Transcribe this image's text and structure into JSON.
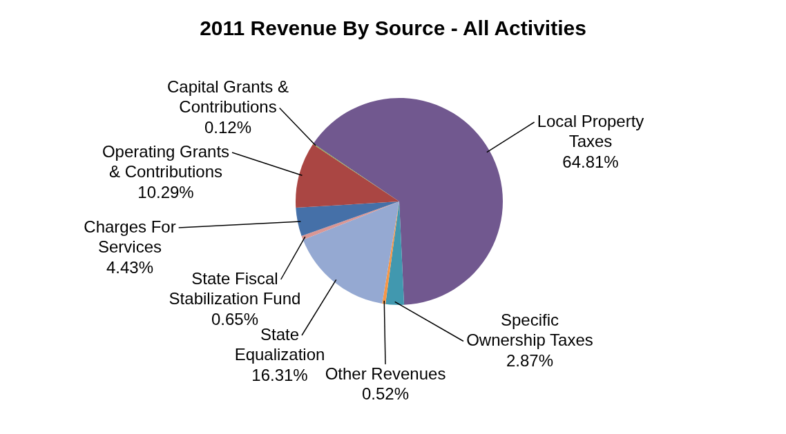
{
  "chart_data": {
    "type": "pie",
    "title": "2011 Revenue By Source - All Activities",
    "categories": [
      "Local Property Taxes",
      "Specific Ownership Taxes",
      "Other Revenues",
      "State Equalization",
      "State Fiscal Stabilization Fund",
      "Charges For Services",
      "Operating Grants & Contributions",
      "Capital Grants & Contributions"
    ],
    "values": [
      64.81,
      2.87,
      0.52,
      16.31,
      0.65,
      4.43,
      10.29,
      0.12
    ],
    "value_labels": [
      "64.81%",
      "2.87%",
      "0.52%",
      "16.31%",
      "0.65%",
      "4.43%",
      "10.29%",
      "0.12%"
    ],
    "colors": [
      "#71588f",
      "#4198af",
      "#f79646",
      "#95a9d2",
      "#d99795",
      "#4570a8",
      "#aa4643",
      "#89a54e"
    ],
    "legend": false
  }
}
